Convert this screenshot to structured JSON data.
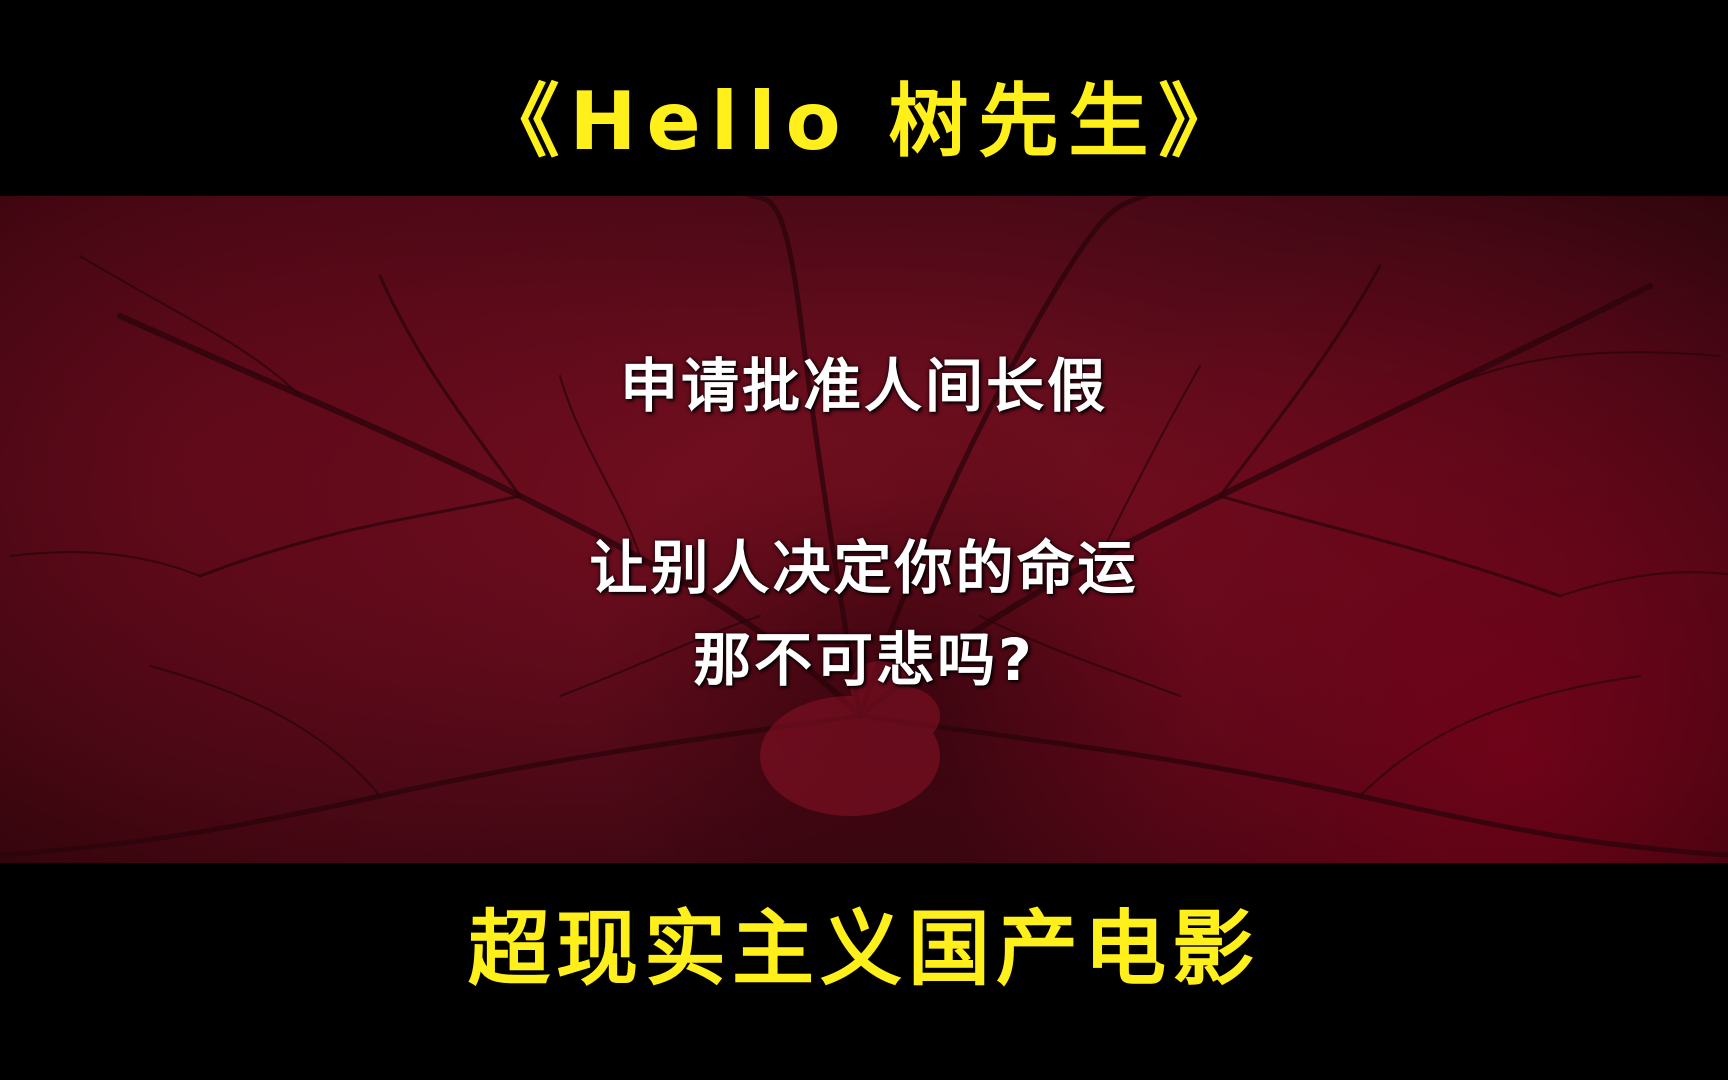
{
  "header": {
    "title": "《Hello 树先生》"
  },
  "scene": {
    "subtitle_line_1": "申请批准人间长假",
    "subtitle_line_2": "让别人决定你的命运",
    "subtitle_line_3": "那不可悲吗?"
  },
  "footer": {
    "caption": "超现实主义国产电影"
  },
  "colors": {
    "accent_yellow": "#ffef1a",
    "background_black": "#000000",
    "scene_red": "#6e0f1e",
    "subtitle_white": "#ffffff"
  }
}
